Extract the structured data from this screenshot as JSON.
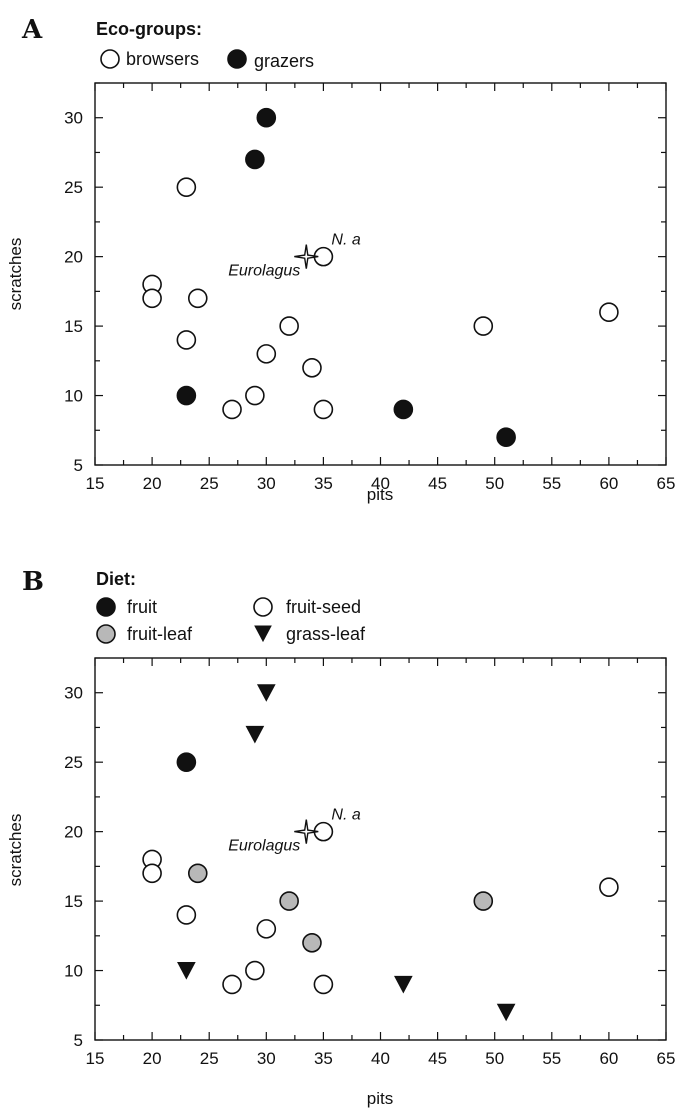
{
  "chart_data": [
    {
      "panel": "A",
      "type": "scatter",
      "title": "",
      "xlabel": "pits",
      "ylabel": "scratches",
      "xlim": [
        15,
        65
      ],
      "ylim": [
        5,
        32.5
      ],
      "xticks": [
        15,
        20,
        25,
        30,
        35,
        40,
        45,
        50,
        55,
        60,
        65
      ],
      "yticks": [
        5,
        10,
        15,
        20,
        25,
        30
      ],
      "grid": false,
      "legend_title": "Eco-groups:",
      "legend_position": "top-left, above plot",
      "series": [
        {
          "name": "browsers",
          "marker": "open-circle",
          "color": "#ffffff",
          "points": [
            [
              20,
              18
            ],
            [
              20,
              17
            ],
            [
              23,
              25
            ],
            [
              24,
              17
            ],
            [
              23,
              14
            ],
            [
              30,
              13
            ],
            [
              32,
              15
            ],
            [
              34,
              12
            ],
            [
              35,
              20
            ],
            [
              27,
              9
            ],
            [
              29,
              10
            ],
            [
              35,
              9
            ],
            [
              49,
              15
            ],
            [
              60,
              16
            ]
          ]
        },
        {
          "name": "grazers",
          "marker": "filled-circle",
          "color": "#111111",
          "points": [
            [
              30,
              30
            ],
            [
              29,
              27
            ],
            [
              23,
              10
            ],
            [
              42,
              9
            ],
            [
              51,
              7
            ]
          ]
        }
      ],
      "annotations": [
        {
          "text": "Eurolagus",
          "marker": "star",
          "x": 33.5,
          "y": 20
        },
        {
          "text": "N. a",
          "x": 35,
          "y": 20
        }
      ]
    },
    {
      "panel": "B",
      "type": "scatter",
      "title": "",
      "xlabel": "pits",
      "ylabel": "scratches",
      "xlim": [
        15,
        65
      ],
      "ylim": [
        5,
        32.5
      ],
      "xticks": [
        15,
        20,
        25,
        30,
        35,
        40,
        45,
        50,
        55,
        60,
        65
      ],
      "yticks": [
        5,
        10,
        15,
        20,
        25,
        30
      ],
      "grid": false,
      "legend_title": "Diet:",
      "legend_position": "top-left, above plot",
      "series": [
        {
          "name": "fruit",
          "marker": "filled-circle",
          "color": "#111111",
          "points": [
            [
              23,
              25
            ]
          ]
        },
        {
          "name": "fruit-seed",
          "marker": "open-circle",
          "color": "#ffffff",
          "points": [
            [
              20,
              18
            ],
            [
              20,
              17
            ],
            [
              23,
              14
            ],
            [
              30,
              13
            ],
            [
              35,
              20
            ],
            [
              27,
              9
            ],
            [
              29,
              10
            ],
            [
              35,
              9
            ],
            [
              60,
              16
            ]
          ]
        },
        {
          "name": "fruit-leaf",
          "marker": "gray-circle",
          "color": "#b8b8b8",
          "points": [
            [
              24,
              17
            ],
            [
              32,
              15
            ],
            [
              34,
              12
            ],
            [
              49,
              15
            ]
          ]
        },
        {
          "name": "grass-leaf",
          "marker": "filled-triangle-down",
          "color": "#111111",
          "points": [
            [
              30,
              30
            ],
            [
              29,
              27
            ],
            [
              23,
              10
            ],
            [
              42,
              9
            ],
            [
              51,
              7
            ]
          ]
        }
      ],
      "annotations": [
        {
          "text": "Eurolagus",
          "marker": "star",
          "x": 33.5,
          "y": 20
        },
        {
          "text": "N. a",
          "x": 35,
          "y": 20
        }
      ]
    }
  ]
}
